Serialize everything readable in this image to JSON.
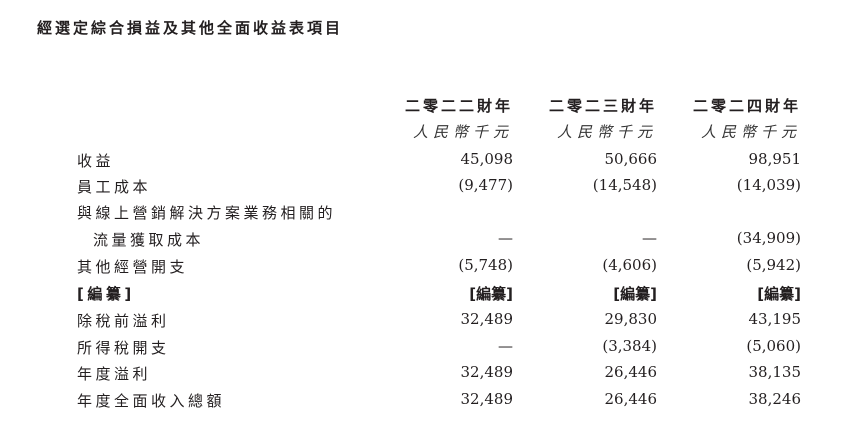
{
  "title": "經選定綜合損益及其他全面收益表項目",
  "columns": [
    {
      "year": "二零二二財年",
      "unit": "人民幣千元"
    },
    {
      "year": "二零二三財年",
      "unit": "人民幣千元"
    },
    {
      "year": "二零二四財年",
      "unit": "人民幣千元"
    }
  ],
  "rows": [
    {
      "label": "收益",
      "values": [
        "45,098",
        "50,666",
        "98,951"
      ]
    },
    {
      "label": "員工成本",
      "values": [
        "(9,477)",
        "(14,548)",
        "(14,039)"
      ]
    },
    {
      "label": "與線上營銷解決方案業務相關的",
      "values": [
        "",
        "",
        ""
      ]
    },
    {
      "label": "流量獲取成本",
      "values": [
        "—",
        "—",
        "(34,909)"
      ]
    },
    {
      "label": "其他經營開支",
      "values": [
        "(5,748)",
        "(4,606)",
        "(5,942)"
      ]
    },
    {
      "label": "[編纂]",
      "values": [
        "[編纂]",
        "[編纂]",
        "[編纂]"
      ]
    },
    {
      "label": "除稅前溢利",
      "values": [
        "32,489",
        "29,830",
        "43,195"
      ]
    },
    {
      "label": "所得稅開支",
      "values": [
        "—",
        "(3,384)",
        "(5,060)"
      ]
    },
    {
      "label": "年度溢利",
      "values": [
        "32,489",
        "26,446",
        "38,135"
      ]
    },
    {
      "label": "年度全面收入總額",
      "values": [
        "32,489",
        "26,446",
        "38,246"
      ]
    }
  ]
}
